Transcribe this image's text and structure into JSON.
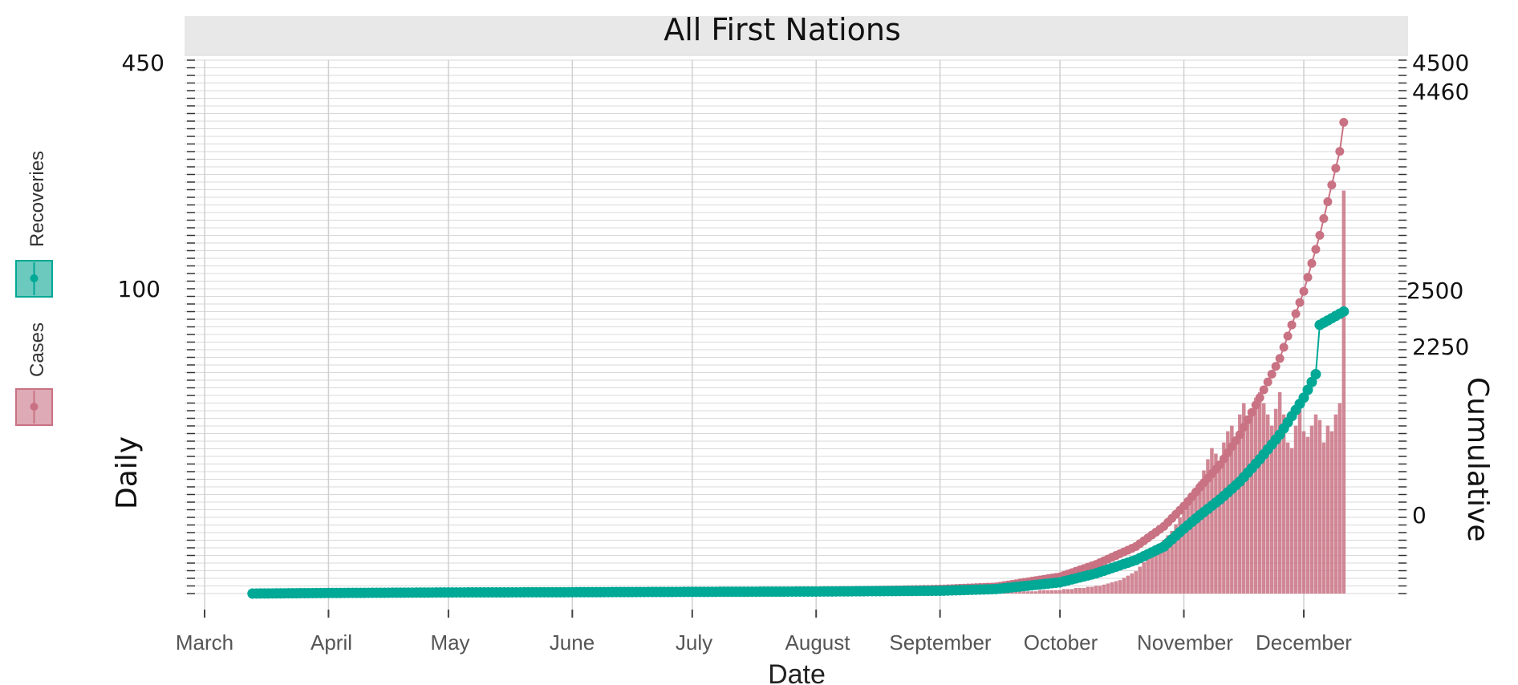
{
  "chart_data": {
    "type": "bar",
    "panel_title": "All First Nations",
    "xlabel": "Date",
    "ylabel_left": "Daily",
    "ylabel_right": "Cumulative",
    "x_ticks": [
      "March",
      "April",
      "May",
      "June",
      "July",
      "August",
      "September",
      "October",
      "November",
      "December"
    ],
    "y_left_ticks": [
      "450",
      "100"
    ],
    "y_right_ticks": [
      "4500",
      "4460",
      "2500",
      "2250",
      "0"
    ],
    "legend": [
      {
        "name": "Recoveries",
        "color": "#00a896"
      },
      {
        "name": "Cases",
        "color": "#c97283"
      }
    ],
    "colors": {
      "cases": "#c97283",
      "recoveries": "#00a896",
      "strip": "#e8e8e8",
      "grid": "#d9d9d9"
    },
    "x_range": [
      "2020-03-01",
      "2020-12-15"
    ],
    "y_right_range": [
      0,
      4500
    ],
    "y_left_range": [
      0,
      450
    ],
    "daily_cases": {
      "type": "bar",
      "name": "Cases",
      "x_start": "2020-04-01",
      "x_end": "2020-12-11",
      "values": [
        1,
        1,
        1,
        1,
        1,
        1,
        1,
        1,
        1,
        1,
        1,
        1,
        1,
        1,
        1,
        1,
        1,
        1,
        1,
        1,
        1,
        1,
        1,
        1,
        1,
        1,
        1,
        1,
        1,
        1,
        0,
        0,
        0,
        0,
        0,
        0,
        0,
        0,
        0,
        0,
        0,
        0,
        0,
        0,
        0,
        0,
        0,
        0,
        0,
        0,
        0,
        0,
        0,
        0,
        0,
        0,
        0,
        0,
        0,
        0,
        0,
        0,
        0,
        0,
        0,
        0,
        0,
        0,
        0,
        0,
        0,
        0,
        0,
        0,
        0,
        0,
        0,
        0,
        0,
        0,
        0,
        0,
        0,
        0,
        0,
        0,
        0,
        0,
        0,
        0,
        0,
        0,
        0,
        0,
        0,
        0,
        0,
        0,
        0,
        0,
        0,
        0,
        0,
        0,
        0,
        0,
        0,
        0,
        0,
        0,
        0,
        0,
        0,
        0,
        0,
        0,
        0,
        0,
        0,
        0,
        0,
        0,
        0,
        0,
        0,
        0,
        0,
        0,
        0,
        0,
        0,
        0,
        0,
        0,
        0,
        0,
        0,
        0,
        0,
        0,
        0,
        0,
        0,
        0,
        0,
        0,
        0,
        0,
        1,
        1,
        1,
        1,
        1,
        1,
        1,
        1,
        1,
        1,
        1,
        1,
        1,
        1,
        1,
        2,
        2,
        2,
        2,
        2,
        2,
        2,
        2,
        2,
        2,
        2,
        2,
        2,
        2,
        2,
        3,
        3,
        3,
        3,
        3,
        3,
        4,
        4,
        4,
        5,
        5,
        5,
        6,
        6,
        7,
        7,
        8,
        9,
        10,
        11,
        12,
        14,
        16,
        18,
        20,
        24,
        28,
        32,
        36,
        40,
        44,
        48,
        52,
        56,
        62,
        68,
        74,
        80,
        86,
        92,
        100,
        110,
        120,
        130,
        125,
        115,
        135,
        145,
        150,
        140,
        160,
        170,
        155,
        165,
        175,
        180,
        170,
        160,
        150,
        165,
        180,
        160,
        135,
        130,
        150,
        165,
        145,
        140,
        150,
        160,
        155,
        135,
        150,
        145,
        160,
        170,
        360
      ]
    },
    "cumulative_cases": {
      "type": "line",
      "name": "Cases",
      "points": [
        [
          "2020-03-13",
          0
        ],
        [
          "2020-04-01",
          10
        ],
        [
          "2020-05-01",
          12
        ],
        [
          "2020-06-01",
          15
        ],
        [
          "2020-07-01",
          18
        ],
        [
          "2020-08-01",
          20
        ],
        [
          "2020-09-01",
          40
        ],
        [
          "2020-09-15",
          60
        ],
        [
          "2020-10-01",
          150
        ],
        [
          "2020-10-10",
          260
        ],
        [
          "2020-10-20",
          420
        ],
        [
          "2020-10-27",
          600
        ],
        [
          "2020-11-01",
          780
        ],
        [
          "2020-11-05",
          950
        ],
        [
          "2020-11-10",
          1150
        ],
        [
          "2020-11-15",
          1420
        ],
        [
          "2020-11-20",
          1750
        ],
        [
          "2020-11-25",
          2100
        ],
        [
          "2020-12-01",
          2700
        ],
        [
          "2020-12-05",
          3200
        ],
        [
          "2020-12-10",
          3950
        ],
        [
          "2020-12-11",
          4210
        ]
      ]
    },
    "cumulative_recoveries": {
      "type": "line",
      "name": "Recoveries",
      "points": [
        [
          "2020-03-13",
          0
        ],
        [
          "2020-04-01",
          5
        ],
        [
          "2020-05-01",
          10
        ],
        [
          "2020-06-01",
          12
        ],
        [
          "2020-07-01",
          15
        ],
        [
          "2020-08-01",
          18
        ],
        [
          "2020-09-01",
          25
        ],
        [
          "2020-09-15",
          40
        ],
        [
          "2020-10-01",
          100
        ],
        [
          "2020-10-10",
          180
        ],
        [
          "2020-10-20",
          300
        ],
        [
          "2020-10-27",
          420
        ],
        [
          "2020-11-01",
          580
        ],
        [
          "2020-11-05",
          700
        ],
        [
          "2020-11-10",
          840
        ],
        [
          "2020-11-15",
          1000
        ],
        [
          "2020-11-20",
          1200
        ],
        [
          "2020-11-25",
          1420
        ],
        [
          "2020-12-01",
          1750
        ],
        [
          "2020-12-04",
          1960
        ],
        [
          "2020-12-05",
          2400
        ],
        [
          "2020-12-08",
          2460
        ],
        [
          "2020-12-11",
          2520
        ]
      ]
    }
  }
}
